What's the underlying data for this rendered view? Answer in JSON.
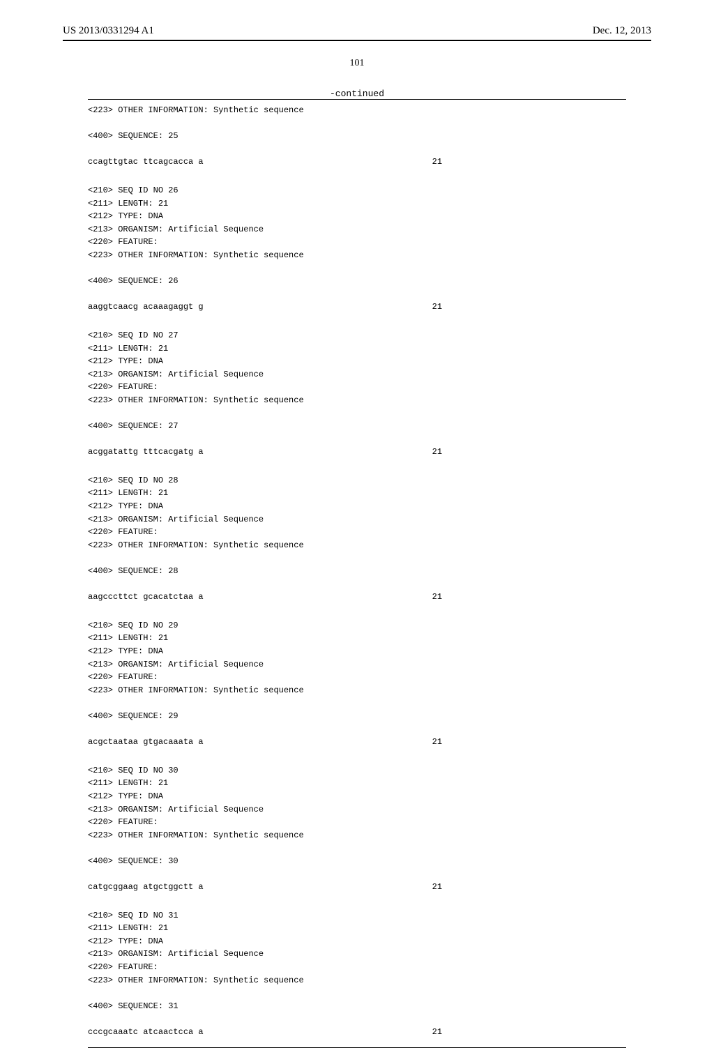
{
  "header": {
    "pub_number": "US 2013/0331294 A1",
    "pub_date": "Dec. 12, 2013"
  },
  "page_number": "101",
  "continued_label": "-continued",
  "typography": {
    "header_font_family": "Times New Roman",
    "header_font_size_pt": 11,
    "page_number_font_size_pt": 10,
    "listing_font_family": "Courier New",
    "listing_font_size_pt": 9,
    "line_height": 1.55
  },
  "colors": {
    "text": "#000000",
    "background": "#ffffff",
    "rule": "#000000"
  },
  "intro_lines": [
    "<223> OTHER INFORMATION: Synthetic sequence",
    "",
    "<400> SEQUENCE: 25"
  ],
  "intro_seq": {
    "text": "ccagttgtac ttcagcacca a",
    "length": "21"
  },
  "blocks": [
    {
      "meta": [
        "<210> SEQ ID NO 26",
        "<211> LENGTH: 21",
        "<212> TYPE: DNA",
        "<213> ORGANISM: Artificial Sequence",
        "<220> FEATURE:",
        "<223> OTHER INFORMATION: Synthetic sequence",
        "",
        "<400> SEQUENCE: 26"
      ],
      "seq": {
        "text": "aaggtcaacg acaaagaggt g",
        "length": "21"
      }
    },
    {
      "meta": [
        "<210> SEQ ID NO 27",
        "<211> LENGTH: 21",
        "<212> TYPE: DNA",
        "<213> ORGANISM: Artificial Sequence",
        "<220> FEATURE:",
        "<223> OTHER INFORMATION: Synthetic sequence",
        "",
        "<400> SEQUENCE: 27"
      ],
      "seq": {
        "text": "acggatattg tttcacgatg a",
        "length": "21"
      }
    },
    {
      "meta": [
        "<210> SEQ ID NO 28",
        "<211> LENGTH: 21",
        "<212> TYPE: DNA",
        "<213> ORGANISM: Artificial Sequence",
        "<220> FEATURE:",
        "<223> OTHER INFORMATION: Synthetic sequence",
        "",
        "<400> SEQUENCE: 28"
      ],
      "seq": {
        "text": "aagcccttct gcacatctaa a",
        "length": "21"
      }
    },
    {
      "meta": [
        "<210> SEQ ID NO 29",
        "<211> LENGTH: 21",
        "<212> TYPE: DNA",
        "<213> ORGANISM: Artificial Sequence",
        "<220> FEATURE:",
        "<223> OTHER INFORMATION: Synthetic sequence",
        "",
        "<400> SEQUENCE: 29"
      ],
      "seq": {
        "text": "acgctaataa gtgacaaata a",
        "length": "21"
      }
    },
    {
      "meta": [
        "<210> SEQ ID NO 30",
        "<211> LENGTH: 21",
        "<212> TYPE: DNA",
        "<213> ORGANISM: Artificial Sequence",
        "<220> FEATURE:",
        "<223> OTHER INFORMATION: Synthetic sequence",
        "",
        "<400> SEQUENCE: 30"
      ],
      "seq": {
        "text": "catgcggaag atgctggctt a",
        "length": "21"
      }
    },
    {
      "meta": [
        "<210> SEQ ID NO 31",
        "<211> LENGTH: 21",
        "<212> TYPE: DNA",
        "<213> ORGANISM: Artificial Sequence",
        "<220> FEATURE:",
        "<223> OTHER INFORMATION: Synthetic sequence",
        "",
        "<400> SEQUENCE: 31"
      ],
      "seq": {
        "text": "cccgcaaatc atcaactcca a",
        "length": "21"
      }
    }
  ]
}
